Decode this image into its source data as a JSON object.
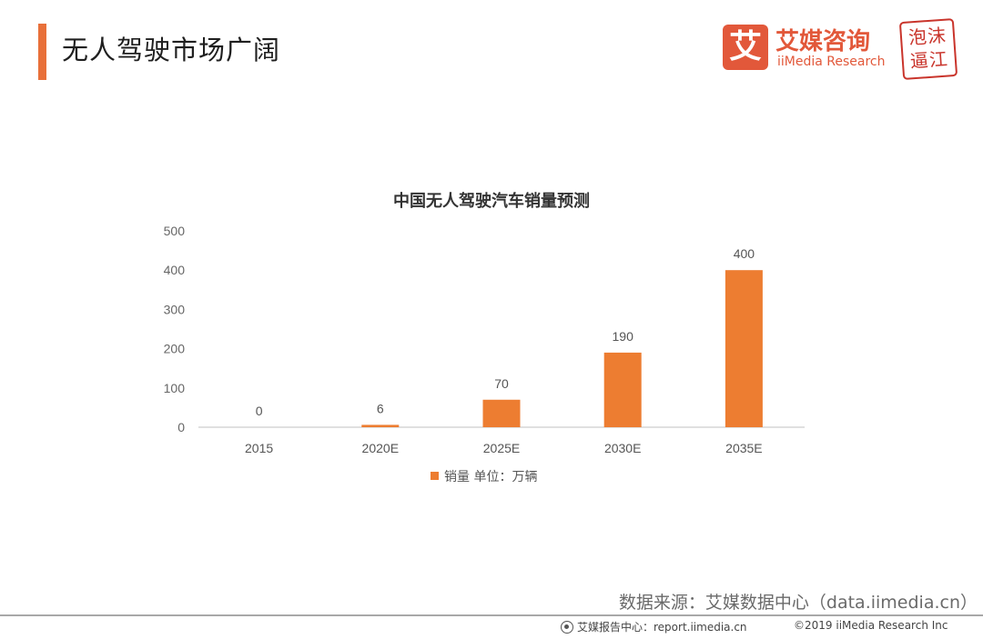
{
  "header": {
    "title": "无人驾驶市场广阔"
  },
  "logo": {
    "mark": "艾",
    "name_cn": "艾媒咨询",
    "name_en": "iiMedia Research"
  },
  "seal": {
    "text_row1": "泡沫",
    "text_row2": "逼江"
  },
  "colors": {
    "accent": "#e8703a",
    "bar": "#ed7d31",
    "brand": "#e2583a",
    "seal": "#c9342b"
  },
  "chart_data": {
    "type": "bar",
    "title": "中国无人驾驶汽车销量预测",
    "categories": [
      "2015",
      "2020E",
      "2025E",
      "2030E",
      "2035E"
    ],
    "series": [
      {
        "name": "销量 单位：万辆",
        "values": [
          0,
          6,
          70,
          190,
          400
        ]
      }
    ],
    "yticks": [
      0,
      100,
      200,
      300,
      400,
      500
    ],
    "ylim": [
      0,
      500
    ],
    "xlabel": "",
    "ylabel": "",
    "grid": false,
    "legend": "bottom"
  },
  "footer": {
    "source": "数据来源：艾媒数据中心（data.iimedia.cn）",
    "report_label": "艾媒报告中心：report.iimedia.cn",
    "copyright": "©2019  iiMedia Research Inc"
  }
}
